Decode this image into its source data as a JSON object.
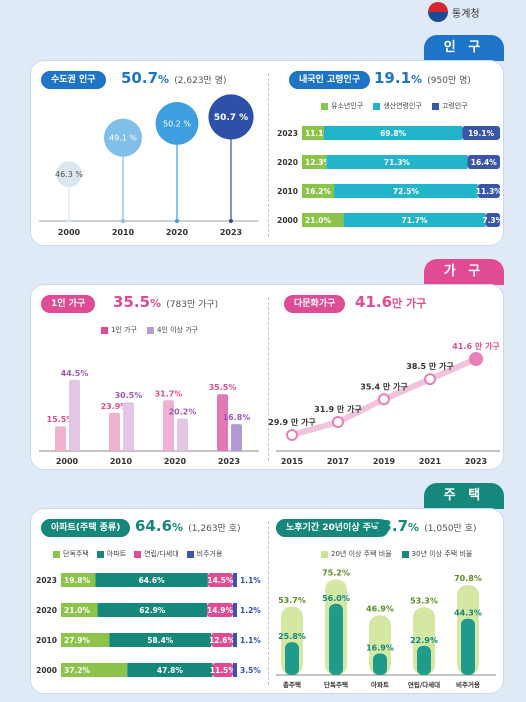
{
  "header": {
    "logo_text": "통계청"
  },
  "sections": {
    "population": "인 구",
    "household": "가 구",
    "housing": "주 택"
  },
  "colors": {
    "blue": "#1e74c7",
    "pink": "#e04c93",
    "teal": "#16877b",
    "green": "#8cc34b",
    "cyan": "#22b4c9",
    "navy": "#3b56a7",
    "lightpink": "#eeb0d0",
    "lavender": "#e4a9d0"
  },
  "panels": {
    "metro": {
      "label": "수도권 인구",
      "value": "50.7",
      "unit": "%",
      "sub": "(2,623만 명)"
    },
    "elderly": {
      "label": "내국인 고령인구",
      "value": "19.1",
      "unit": "%",
      "sub": "(950만 명)"
    },
    "single": {
      "label": "1인 가구",
      "value": "35.5",
      "unit": "%",
      "sub": "(783만 가구)"
    },
    "multi": {
      "label": "다문화가구",
      "value": "41.6",
      "unit": "만 가구",
      "sub": ""
    },
    "apt": {
      "label": "아파트(주택 종류)",
      "value": "64.6",
      "unit": "%",
      "sub": "(1,263만 호)"
    },
    "old": {
      "label": "노후기간 20년이상 주택",
      "value": "53.7",
      "unit": "%",
      "sub": "(1,050만 호)"
    }
  },
  "chart_data": [
    {
      "type": "scatter",
      "id": "metro",
      "x": [
        "2000",
        "2010",
        "2020",
        "2023"
      ],
      "values": [
        46.3,
        49.1,
        50.2,
        50.7
      ],
      "value_labels": [
        "46.3",
        "49.1",
        "50.2",
        "50.7"
      ],
      "unit": "%"
    },
    {
      "type": "bar",
      "id": "age",
      "stacked": true,
      "horizontal": true,
      "categories": [
        "2023",
        "2020",
        "2010",
        "2000"
      ],
      "series": [
        {
          "name": "유소년인구",
          "values": [
            11.1,
            12.3,
            16.2,
            21.0
          ]
        },
        {
          "name": "생산연령인구",
          "values": [
            69.8,
            71.3,
            72.5,
            71.7
          ]
        },
        {
          "name": "고령인구",
          "values": [
            19.1,
            16.4,
            11.3,
            7.3
          ]
        }
      ],
      "unit": "%"
    },
    {
      "type": "bar",
      "id": "household_size",
      "categories": [
        "2000",
        "2010",
        "2020",
        "2023"
      ],
      "series": [
        {
          "name": "1인 가구",
          "values": [
            15.5,
            23.9,
            31.7,
            35.5
          ]
        },
        {
          "name": "4인 이상 가구",
          "values": [
            44.5,
            30.5,
            20.2,
            16.8
          ]
        }
      ],
      "unit": "%"
    },
    {
      "type": "line",
      "id": "multicultural",
      "x": [
        "2015",
        "2017",
        "2019",
        "2021",
        "2023"
      ],
      "values": [
        29.9,
        31.9,
        35.4,
        38.5,
        41.6
      ],
      "value_labels": [
        "29.9",
        "31.9",
        "35.4",
        "38.5",
        "41.6"
      ],
      "unit": "만 가구"
    },
    {
      "type": "bar",
      "id": "housing_type",
      "stacked": true,
      "horizontal": true,
      "categories": [
        "2023",
        "2020",
        "2010",
        "2000"
      ],
      "series": [
        {
          "name": "단독주택",
          "values": [
            19.8,
            21.0,
            27.9,
            37.2
          ]
        },
        {
          "name": "아파트",
          "values": [
            64.6,
            62.9,
            58.4,
            47.8
          ]
        },
        {
          "name": "연립/다세대",
          "values": [
            14.5,
            14.9,
            12.6,
            11.5
          ]
        },
        {
          "name": "비주거용",
          "values": [
            1.1,
            1.2,
            1.1,
            3.5
          ]
        }
      ],
      "unit": "%"
    },
    {
      "type": "bar",
      "id": "housing_age",
      "categories": [
        "총주택",
        "단독주택",
        "아파트",
        "연립/다세대",
        "비주거용"
      ],
      "series": [
        {
          "name": "20년 이상 주택 비율",
          "values": [
            53.7,
            75.2,
            46.9,
            53.3,
            70.8
          ]
        },
        {
          "name": "30년 이상 주택 비율",
          "values": [
            25.8,
            56.0,
            16.9,
            22.9,
            44.3
          ]
        }
      ],
      "unit": "%"
    }
  ]
}
